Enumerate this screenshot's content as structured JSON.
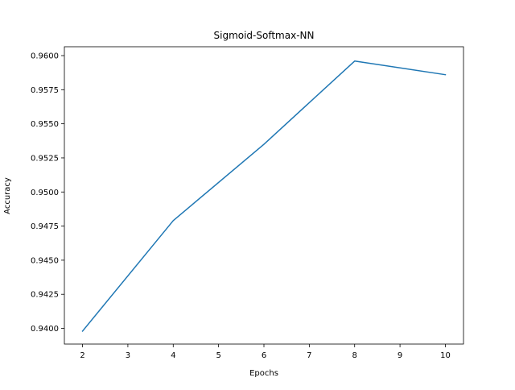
{
  "chart_data": {
    "type": "line",
    "title": "Sigmoid-Softmax-NN",
    "xlabel": "Epochs",
    "ylabel": "Accuracy",
    "x_ticks": [
      2,
      3,
      4,
      5,
      6,
      7,
      8,
      9,
      10
    ],
    "x_tick_labels": [
      "2",
      "3",
      "4",
      "5",
      "6",
      "7",
      "8",
      "9",
      "10"
    ],
    "y_ticks": [
      0.94,
      0.9425,
      0.945,
      0.9475,
      0.95,
      0.9525,
      0.955,
      0.9575,
      0.96
    ],
    "y_tick_labels": [
      "0.9400",
      "0.9425",
      "0.9450",
      "0.9475",
      "0.9500",
      "0.9525",
      "0.9550",
      "0.9575",
      "0.9600"
    ],
    "xlim": [
      1.6,
      10.4
    ],
    "ylim": [
      0.93885,
      0.96065
    ],
    "grid": false,
    "series": [
      {
        "color": "#1f77b4",
        "x": [
          2,
          4,
          6,
          8,
          10
        ],
        "y": [
          0.9398,
          0.9479,
          0.9535,
          0.9596,
          0.9586
        ]
      }
    ]
  }
}
